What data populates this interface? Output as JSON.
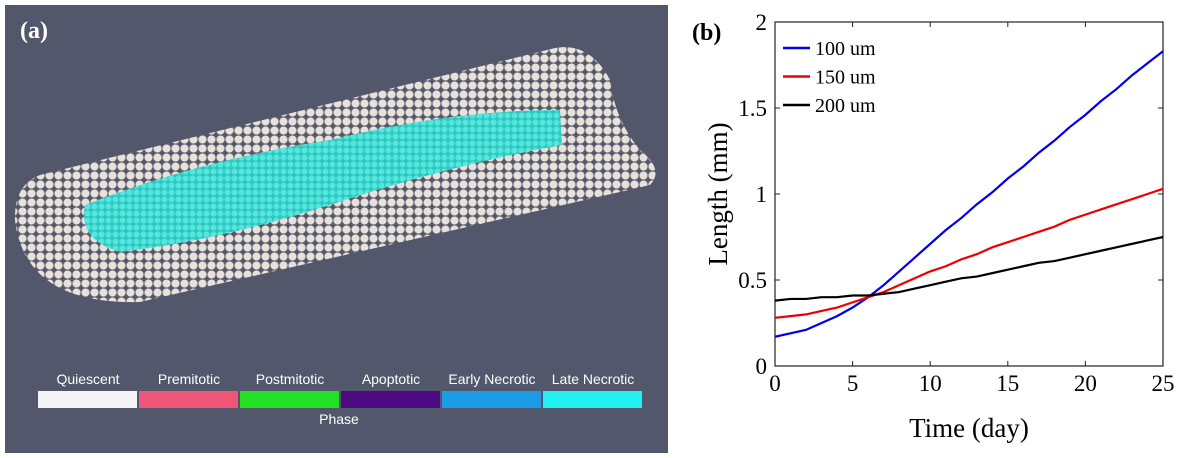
{
  "panel_a": {
    "label": "(a)",
    "legend_title": "Phase",
    "legend": [
      {
        "name": "Quiescent",
        "color": "#f4f4f4"
      },
      {
        "name": "Premitotic",
        "color": "#ee5577"
      },
      {
        "name": "Postmitotic",
        "color": "#22e022"
      },
      {
        "name": "Apoptotic",
        "color": "#4b0a82"
      },
      {
        "name": "Early Necrotic",
        "color": "#1c9be6"
      },
      {
        "name": "Late Necrotic",
        "color": "#22f0f0"
      }
    ]
  },
  "chart_data": {
    "type": "line",
    "panel_label": "(b)",
    "x_label": "Time (day)",
    "y_label": "Length (mm)",
    "x": [
      0,
      1,
      2,
      3,
      4,
      5,
      6,
      7,
      8,
      9,
      10,
      11,
      12,
      13,
      14,
      15,
      16,
      17,
      18,
      19,
      20,
      21,
      22,
      23,
      24,
      25
    ],
    "series": [
      {
        "name": "100 um",
        "color": "#0000ee",
        "values": [
          0.17,
          0.19,
          0.21,
          0.25,
          0.29,
          0.34,
          0.4,
          0.47,
          0.55,
          0.63,
          0.71,
          0.79,
          0.86,
          0.94,
          1.01,
          1.09,
          1.16,
          1.24,
          1.31,
          1.39,
          1.46,
          1.54,
          1.61,
          1.69,
          1.76,
          1.83
        ]
      },
      {
        "name": "150 um",
        "color": "#ee0000",
        "values": [
          0.28,
          0.29,
          0.3,
          0.32,
          0.34,
          0.37,
          0.4,
          0.43,
          0.47,
          0.51,
          0.55,
          0.58,
          0.62,
          0.65,
          0.69,
          0.72,
          0.75,
          0.78,
          0.81,
          0.85,
          0.88,
          0.91,
          0.94,
          0.97,
          1.0,
          1.03
        ]
      },
      {
        "name": "200 um",
        "color": "#000000",
        "values": [
          0.38,
          0.39,
          0.39,
          0.4,
          0.4,
          0.41,
          0.41,
          0.42,
          0.43,
          0.45,
          0.47,
          0.49,
          0.51,
          0.52,
          0.54,
          0.56,
          0.58,
          0.6,
          0.61,
          0.63,
          0.65,
          0.67,
          0.69,
          0.71,
          0.73,
          0.75
        ]
      }
    ],
    "xlim": [
      0,
      25
    ],
    "xticks": [
      0,
      5,
      10,
      15,
      20,
      25
    ],
    "ylim": [
      0,
      2
    ],
    "yticks": [
      0,
      0.5,
      1,
      1.5,
      2
    ],
    "legend": "upper left"
  }
}
